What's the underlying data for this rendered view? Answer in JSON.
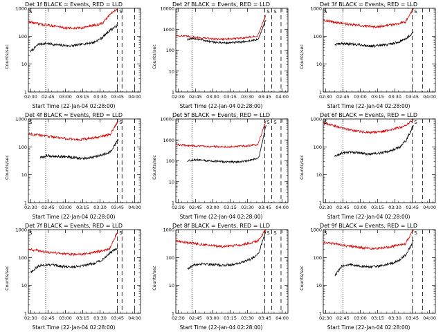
{
  "chart_data": [
    {
      "type": "line",
      "title": "Det 1f BLACK = Events, RED = LLD",
      "xlabel": "Start Time (22-Jan-04 02:28:00)",
      "ylabel": "Counts/sec",
      "yscale": "log",
      "ylim": [
        1,
        1000
      ],
      "xlim_min": [
        0,
        97
      ],
      "yticks": [
        "1",
        "10",
        "100",
        "1000"
      ],
      "xticks": [
        "02:30",
        "02:45",
        "03:00",
        "03:15",
        "03:30",
        "03:45",
        "04:00"
      ],
      "tick_min": [
        2,
        17,
        32,
        47,
        62,
        77,
        92
      ],
      "markers": [
        "S",
        "S"
      ],
      "marker_min": [
        0,
        78
      ],
      "series": [
        {
          "name": "BLACK = Events",
          "color": "#000000",
          "start_min": 2,
          "end_min": 77,
          "values": [
            28,
            52,
            55,
            50,
            47,
            45,
            48,
            55,
            60,
            85,
            160,
            240
          ]
        },
        {
          "name": "RED = LLD",
          "color": "#d40000",
          "start_min": 0,
          "end_min": 77,
          "values": [
            330,
            290,
            260,
            240,
            220,
            200,
            190,
            200,
            220,
            250,
            290,
            600,
            1000
          ]
        }
      ],
      "vlines": [
        {
          "min": 15,
          "style": "dotted"
        },
        {
          "min": 77,
          "style": "dashed"
        },
        {
          "min": 81,
          "style": "dashed"
        },
        {
          "min": 92,
          "style": "dashed"
        }
      ]
    },
    {
      "type": "line",
      "title": "Det 2f BLACK = Events, RED = LLD",
      "xlabel": "Start Time (22-Jan-04 02:28:00)",
      "ylabel": "Counts/sec",
      "yscale": "log",
      "ylim": [
        1,
        10000
      ],
      "xlim_min": [
        0,
        97
      ],
      "yticks": [
        "1",
        "10",
        "100",
        "1000",
        "10000"
      ],
      "xticks": [
        "02:30",
        "02:45",
        "03:00",
        "03:15",
        "03:30",
        "03:45",
        "04:00"
      ],
      "tick_min": [
        2,
        17,
        32,
        47,
        62,
        77,
        92
      ],
      "markers": [
        "S",
        "S"
      ],
      "marker_min": [
        78,
        84
      ],
      "series": [
        {
          "name": "BLACK = Events",
          "color": "#000000",
          "start_min": 10,
          "end_min": 78,
          "values": [
            330,
            350,
            300,
            250,
            230,
            220,
            230,
            250,
            280,
            320,
            3000
          ]
        },
        {
          "name": "RED = LLD",
          "color": "#d40000",
          "start_min": 0,
          "end_min": 78,
          "values": [
            500,
            470,
            430,
            390,
            360,
            340,
            340,
            350,
            380,
            420,
            470,
            5000
          ]
        }
      ],
      "vlines": [
        {
          "min": 14,
          "style": "dotted"
        },
        {
          "min": 77,
          "style": "dashed"
        },
        {
          "min": 83,
          "style": "dashed"
        },
        {
          "min": 91,
          "style": "dashed"
        }
      ]
    },
    {
      "type": "line",
      "title": "Det 3f BLACK = Events, RED = LLD",
      "xlabel": "Start Time (22-Jan-04 02:28:00)",
      "ylabel": "Counts/sec",
      "yscale": "log",
      "ylim": [
        1,
        1000
      ],
      "xlim_min": [
        0,
        97
      ],
      "yticks": [
        "1",
        "10",
        "100",
        "1000"
      ],
      "xticks": [
        "02:30",
        "02:45",
        "03:00",
        "03:15",
        "03:30",
        "03:45",
        "04:00"
      ],
      "tick_min": [
        2,
        17,
        32,
        47,
        62,
        77,
        92
      ],
      "markers": [
        "S",
        "S"
      ],
      "marker_min": [
        0,
        78
      ],
      "series": [
        {
          "name": "BLACK = Events",
          "color": "#000000",
          "start_min": 10,
          "end_min": 78,
          "values": [
            50,
            55,
            52,
            50,
            46,
            44,
            47,
            52,
            60,
            80,
            140
          ]
        },
        {
          "name": "RED = LLD",
          "color": "#d40000",
          "start_min": 0,
          "end_min": 78,
          "values": [
            380,
            330,
            300,
            270,
            250,
            230,
            220,
            230,
            250,
            280,
            330,
            1000
          ]
        }
      ],
      "vlines": [
        {
          "min": 17,
          "style": "dotted"
        },
        {
          "min": 77,
          "style": "dashed"
        },
        {
          "min": 86,
          "style": "dashed"
        }
      ]
    },
    {
      "type": "line",
      "title": "Det 4f BLACK = Events, RED = LLD",
      "xlabel": "Start Time (22-Jan-04 02:28:00)",
      "ylabel": "Counts/sec",
      "yscale": "log",
      "ylim": [
        1,
        1000
      ],
      "xlim_min": [
        0,
        97
      ],
      "yticks": [
        "1",
        "10",
        "100",
        "1000"
      ],
      "xticks": [
        "02:30",
        "02:45",
        "03:00",
        "03:15",
        "03:30",
        "03:45",
        "04:00"
      ],
      "tick_min": [
        2,
        17,
        32,
        47,
        62,
        77,
        92
      ],
      "markers": [
        "S",
        "S"
      ],
      "marker_min": [
        0,
        78
      ],
      "series": [
        {
          "name": "BLACK = Events",
          "color": "#000000",
          "start_min": 10,
          "end_min": 78,
          "values": [
            40,
            48,
            46,
            45,
            44,
            40,
            38,
            40,
            45,
            55,
            70,
            200
          ]
        },
        {
          "name": "RED = LLD",
          "color": "#d40000",
          "start_min": 0,
          "end_min": 78,
          "values": [
            300,
            270,
            250,
            230,
            210,
            190,
            180,
            190,
            210,
            240,
            280,
            900
          ]
        }
      ],
      "vlines": [
        {
          "min": 15,
          "style": "dotted"
        },
        {
          "min": 77,
          "style": "dashed"
        },
        {
          "min": 81,
          "style": "dashed"
        },
        {
          "min": 92,
          "style": "dashed"
        }
      ]
    },
    {
      "type": "line",
      "title": "Det 5f BLACK = Events, RED = LLD",
      "xlabel": "Start Time (22-Jan-04 02:28:00)",
      "ylabel": "Counts/sec",
      "yscale": "log",
      "ylim": [
        1,
        10000
      ],
      "xlim_min": [
        0,
        97
      ],
      "yticks": [
        "1",
        "10",
        "100",
        "1000",
        "10000"
      ],
      "xticks": [
        "02:30",
        "02:45",
        "03:00",
        "03:15",
        "03:30",
        "03:45",
        "04:00"
      ],
      "tick_min": [
        2,
        17,
        32,
        47,
        62,
        77,
        92
      ],
      "markers": [
        "S",
        "S"
      ],
      "marker_min": [
        78,
        84
      ],
      "series": [
        {
          "name": "BLACK = Events",
          "color": "#000000",
          "start_min": 10,
          "end_min": 78,
          "values": [
            100,
            110,
            105,
            100,
            95,
            90,
            88,
            90,
            95,
            110,
            140,
            5000
          ]
        },
        {
          "name": "RED = LLD",
          "color": "#d40000",
          "start_min": 0,
          "end_min": 78,
          "values": [
            600,
            560,
            520,
            500,
            490,
            480,
            470,
            480,
            500,
            540,
            590,
            8000
          ]
        }
      ],
      "vlines": [
        {
          "min": 14,
          "style": "dotted"
        },
        {
          "min": 77,
          "style": "dashed"
        },
        {
          "min": 83,
          "style": "dashed"
        },
        {
          "min": 91,
          "style": "dashed"
        }
      ]
    },
    {
      "type": "line",
      "title": "Det 6f BLACK = Events, RED = LLD",
      "xlabel": "Start Time (22-Jan-04 02:28:00)",
      "ylabel": "Counts/sec",
      "yscale": "log",
      "ylim": [
        1,
        1000
      ],
      "xlim_min": [
        0,
        97
      ],
      "yticks": [
        "1",
        "10",
        "100",
        "1000"
      ],
      "xticks": [
        "02:30",
        "02:45",
        "03:00",
        "03:15",
        "03:30",
        "03:45",
        "04:00"
      ],
      "tick_min": [
        2,
        17,
        32,
        47,
        62,
        77,
        92
      ],
      "markers": [
        "S",
        "S"
      ],
      "marker_min": [
        0,
        78
      ],
      "series": [
        {
          "name": "BLACK = Events",
          "color": "#000000",
          "start_min": 10,
          "end_min": 78,
          "values": [
            45,
            60,
            65,
            62,
            58,
            55,
            58,
            65,
            75,
            95,
            170,
            600
          ]
        },
        {
          "name": "RED = LLD",
          "color": "#d40000",
          "start_min": 0,
          "end_min": 78,
          "values": [
            700,
            600,
            500,
            420,
            370,
            340,
            330,
            350,
            400,
            470,
            560,
            1000
          ]
        }
      ],
      "vlines": [
        {
          "min": 17,
          "style": "dotted"
        },
        {
          "min": 77,
          "style": "dashed"
        },
        {
          "min": 86,
          "style": "dashed"
        }
      ]
    },
    {
      "type": "line",
      "title": "Det 7f BLACK = Events, RED = LLD",
      "xlabel": "Start Time (22-Jan-04 02:28:00)",
      "ylabel": "Counts/sec",
      "yscale": "log",
      "ylim": [
        1,
        1000
      ],
      "xlim_min": [
        0,
        97
      ],
      "yticks": [
        "1",
        "10",
        "100",
        "1000"
      ],
      "xticks": [
        "02:30",
        "02:45",
        "03:00",
        "03:15",
        "03:30",
        "03:45",
        "04:00"
      ],
      "tick_min": [
        2,
        17,
        32,
        47,
        62,
        77,
        92
      ],
      "markers": [
        "S",
        "S"
      ],
      "marker_min": [
        0,
        78
      ],
      "series": [
        {
          "name": "BLACK = Events",
          "color": "#000000",
          "start_min": 2,
          "end_min": 77,
          "values": [
            30,
            50,
            55,
            52,
            48,
            46,
            48,
            55,
            62,
            80,
            140,
            220
          ]
        },
        {
          "name": "RED = LLD",
          "color": "#d40000",
          "start_min": 0,
          "end_min": 77,
          "values": [
            200,
            180,
            160,
            150,
            140,
            130,
            130,
            135,
            150,
            170,
            200,
            800
          ]
        }
      ],
      "vlines": [
        {
          "min": 15,
          "style": "dotted"
        },
        {
          "min": 77,
          "style": "dashed"
        },
        {
          "min": 81,
          "style": "dashed"
        },
        {
          "min": 92,
          "style": "dashed"
        }
      ]
    },
    {
      "type": "line",
      "title": "Det 8f BLACK = Events, RED = LLD",
      "xlabel": "Start Time (22-Jan-04 02:28:00)",
      "ylabel": "Counts/sec",
      "yscale": "log",
      "ylim": [
        1,
        1000
      ],
      "xlim_min": [
        0,
        97
      ],
      "yticks": [
        "1",
        "10",
        "100",
        "1000"
      ],
      "xticks": [
        "02:30",
        "02:45",
        "03:00",
        "03:15",
        "03:30",
        "03:45",
        "04:00"
      ],
      "tick_min": [
        2,
        17,
        32,
        47,
        62,
        77,
        92
      ],
      "markers": [
        "S",
        "S"
      ],
      "marker_min": [
        78,
        84
      ],
      "series": [
        {
          "name": "BLACK = Events",
          "color": "#000000",
          "start_min": 10,
          "end_min": 78,
          "values": [
            40,
            55,
            60,
            58,
            55,
            52,
            55,
            62,
            72,
            90,
            150,
            900
          ]
        },
        {
          "name": "RED = LLD",
          "color": "#d40000",
          "start_min": 0,
          "end_min": 78,
          "values": [
            400,
            360,
            330,
            300,
            280,
            260,
            250,
            260,
            290,
            330,
            390,
            1000
          ]
        }
      ],
      "vlines": [
        {
          "min": 14,
          "style": "dotted"
        },
        {
          "min": 77,
          "style": "dashed"
        },
        {
          "min": 83,
          "style": "dashed"
        },
        {
          "min": 91,
          "style": "dashed"
        }
      ]
    },
    {
      "type": "line",
      "title": "Det 9f BLACK = Events, RED = LLD",
      "xlabel": "Start Time (22-Jan-04 02:28:00)",
      "ylabel": "Counts/sec",
      "yscale": "log",
      "ylim": [
        1,
        1000
      ],
      "xlim_min": [
        0,
        97
      ],
      "yticks": [
        "1",
        "10",
        "100",
        "1000"
      ],
      "xticks": [
        "02:30",
        "02:45",
        "03:00",
        "03:15",
        "03:30",
        "03:45",
        "04:00"
      ],
      "tick_min": [
        2,
        17,
        32,
        47,
        62,
        77,
        92
      ],
      "markers": [
        "S",
        "S"
      ],
      "marker_min": [
        0,
        78
      ],
      "series": [
        {
          "name": "BLACK = Events",
          "color": "#000000",
          "start_min": 10,
          "end_min": 78,
          "values": [
            22,
            50,
            55,
            52,
            48,
            46,
            48,
            55,
            62,
            80,
            130,
            400
          ]
        },
        {
          "name": "RED = LLD",
          "color": "#d40000",
          "start_min": 0,
          "end_min": 78,
          "values": [
            350,
            320,
            290,
            260,
            240,
            220,
            210,
            220,
            240,
            270,
            310,
            1000
          ]
        }
      ],
      "vlines": [
        {
          "min": 17,
          "style": "dotted"
        },
        {
          "min": 77,
          "style": "dashed"
        },
        {
          "min": 86,
          "style": "dashed"
        }
      ]
    }
  ]
}
